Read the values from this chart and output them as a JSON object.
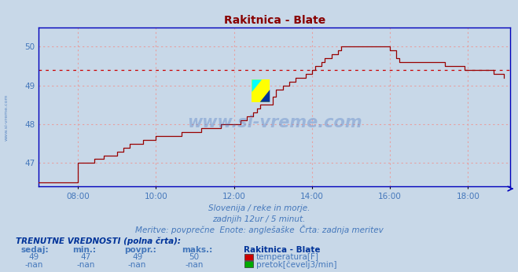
{
  "title": "Rakitnica - Blate",
  "title_color": "#880000",
  "bg_color": "#c8d8e8",
  "plot_bg_color": "#c8d8e8",
  "grid_color": "#e8a0a0",
  "axis_color": "#0000bb",
  "text_color": "#4477bb",
  "ylim": [
    46.4,
    50.5
  ],
  "xlim": [
    0,
    145
  ],
  "yticks": [
    47,
    48,
    49,
    50
  ],
  "xtick_labels": [
    "08:00",
    "10:00",
    "12:00",
    "14:00",
    "16:00",
    "18:00"
  ],
  "xtick_positions": [
    12,
    36,
    60,
    84,
    108,
    132
  ],
  "avg_line_y": 49.4,
  "temp_data": [
    46.5,
    46.5,
    46.5,
    46.5,
    46.5,
    46.5,
    46.5,
    46.5,
    46.5,
    46.5,
    46.5,
    46.5,
    47.0,
    47.0,
    47.0,
    47.0,
    47.0,
    47.1,
    47.1,
    47.1,
    47.2,
    47.2,
    47.2,
    47.2,
    47.3,
    47.3,
    47.4,
    47.4,
    47.5,
    47.5,
    47.5,
    47.5,
    47.6,
    47.6,
    47.6,
    47.6,
    47.7,
    47.7,
    47.7,
    47.7,
    47.7,
    47.7,
    47.7,
    47.7,
    47.8,
    47.8,
    47.8,
    47.8,
    47.8,
    47.8,
    47.9,
    47.9,
    47.9,
    47.9,
    47.9,
    47.9,
    48.0,
    48.0,
    48.0,
    48.0,
    48.0,
    48.0,
    48.1,
    48.1,
    48.2,
    48.2,
    48.3,
    48.4,
    48.5,
    48.5,
    48.5,
    48.5,
    48.7,
    48.9,
    48.9,
    49.0,
    49.0,
    49.1,
    49.1,
    49.2,
    49.2,
    49.2,
    49.3,
    49.3,
    49.4,
    49.5,
    49.5,
    49.6,
    49.7,
    49.7,
    49.8,
    49.8,
    49.9,
    50.0,
    50.0,
    50.0,
    50.0,
    50.0,
    50.0,
    50.0,
    50.0,
    50.0,
    50.0,
    50.0,
    50.0,
    50.0,
    50.0,
    50.0,
    49.9,
    49.9,
    49.7,
    49.6,
    49.6,
    49.6,
    49.6,
    49.6,
    49.6,
    49.6,
    49.6,
    49.6,
    49.6,
    49.6,
    49.6,
    49.6,
    49.6,
    49.5,
    49.5,
    49.5,
    49.5,
    49.5,
    49.5,
    49.4,
    49.4,
    49.4,
    49.4,
    49.4,
    49.4,
    49.4,
    49.4,
    49.4,
    49.3,
    49.3,
    49.3,
    49.2
  ],
  "line_color": "#990000",
  "avg_line_color": "#cc0000",
  "subtitle1": "Slovenija / reke in morje.",
  "subtitle2": "zadnjih 12ur / 5 minut.",
  "subtitle3": "Meritve: povprečne  Enote: anglešaške  Črta: zadnja meritev",
  "footer_label1": "TRENUTNE VREDNOSTI (polna črta):",
  "col_sedaj": "sedaj:",
  "col_min": "min.:",
  "col_povpr": "povpr.:",
  "col_maks": "maks.:",
  "col_station": "Rakitnica - Blate",
  "row1_vals": [
    "49",
    "47",
    "49",
    "50"
  ],
  "row1_label": "temperatura[F]",
  "row1_color": "#cc0000",
  "row2_vals": [
    "-nan",
    "-nan",
    "-nan",
    "-nan"
  ],
  "row2_label": "pretok[čevelj3/min]",
  "row2_color": "#00aa00",
  "watermark_text": "www.si-vreme.com",
  "watermark_color": "#3366bb",
  "left_text": "www.si-vreme.com"
}
